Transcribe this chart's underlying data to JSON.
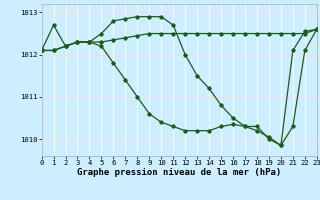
{
  "background_color": "#cceeff",
  "grid_color": "#ffffff",
  "line_color": "#1a5c1a",
  "x_values": [
    0,
    1,
    2,
    3,
    4,
    5,
    6,
    7,
    8,
    9,
    10,
    11,
    12,
    13,
    14,
    15,
    16,
    17,
    18,
    19,
    20,
    21,
    22,
    23
  ],
  "series1": [
    1012.1,
    1012.1,
    1012.2,
    1012.3,
    1012.3,
    1012.3,
    1012.35,
    1012.4,
    1012.45,
    1012.5,
    1012.5,
    1012.5,
    1012.5,
    1012.5,
    1012.5,
    1012.5,
    1012.5,
    1012.5,
    1012.5,
    1012.5,
    1012.5,
    1012.5,
    1012.5,
    1012.6
  ],
  "series2": [
    1012.1,
    1012.7,
    1012.2,
    1012.3,
    1012.3,
    1012.5,
    1012.8,
    1012.85,
    1012.9,
    1012.9,
    1012.9,
    1012.7,
    1012.0,
    1011.5,
    1011.2,
    1010.8,
    1010.5,
    1010.3,
    1010.2,
    1010.05,
    1009.85,
    1012.1,
    1012.55,
    1012.6
  ],
  "series3": [
    1012.1,
    1012.1,
    1012.2,
    1012.3,
    1012.3,
    1012.2,
    1011.8,
    1011.4,
    1011.0,
    1010.6,
    1010.4,
    1010.3,
    1010.2,
    1010.2,
    1010.2,
    1010.3,
    1010.35,
    1010.3,
    1010.3,
    1010.0,
    1009.85,
    1010.3,
    1012.1,
    1012.6
  ],
  "ylim": [
    1009.6,
    1013.2
  ],
  "yticks": [
    1010,
    1011,
    1012,
    1013
  ],
  "xlabel": "Graphe pression niveau de la mer (hPa)",
  "marker": "D",
  "marker_size": 1.8,
  "line_width": 0.9,
  "xlabel_fontsize": 6.5,
  "tick_fontsize": 5.2
}
